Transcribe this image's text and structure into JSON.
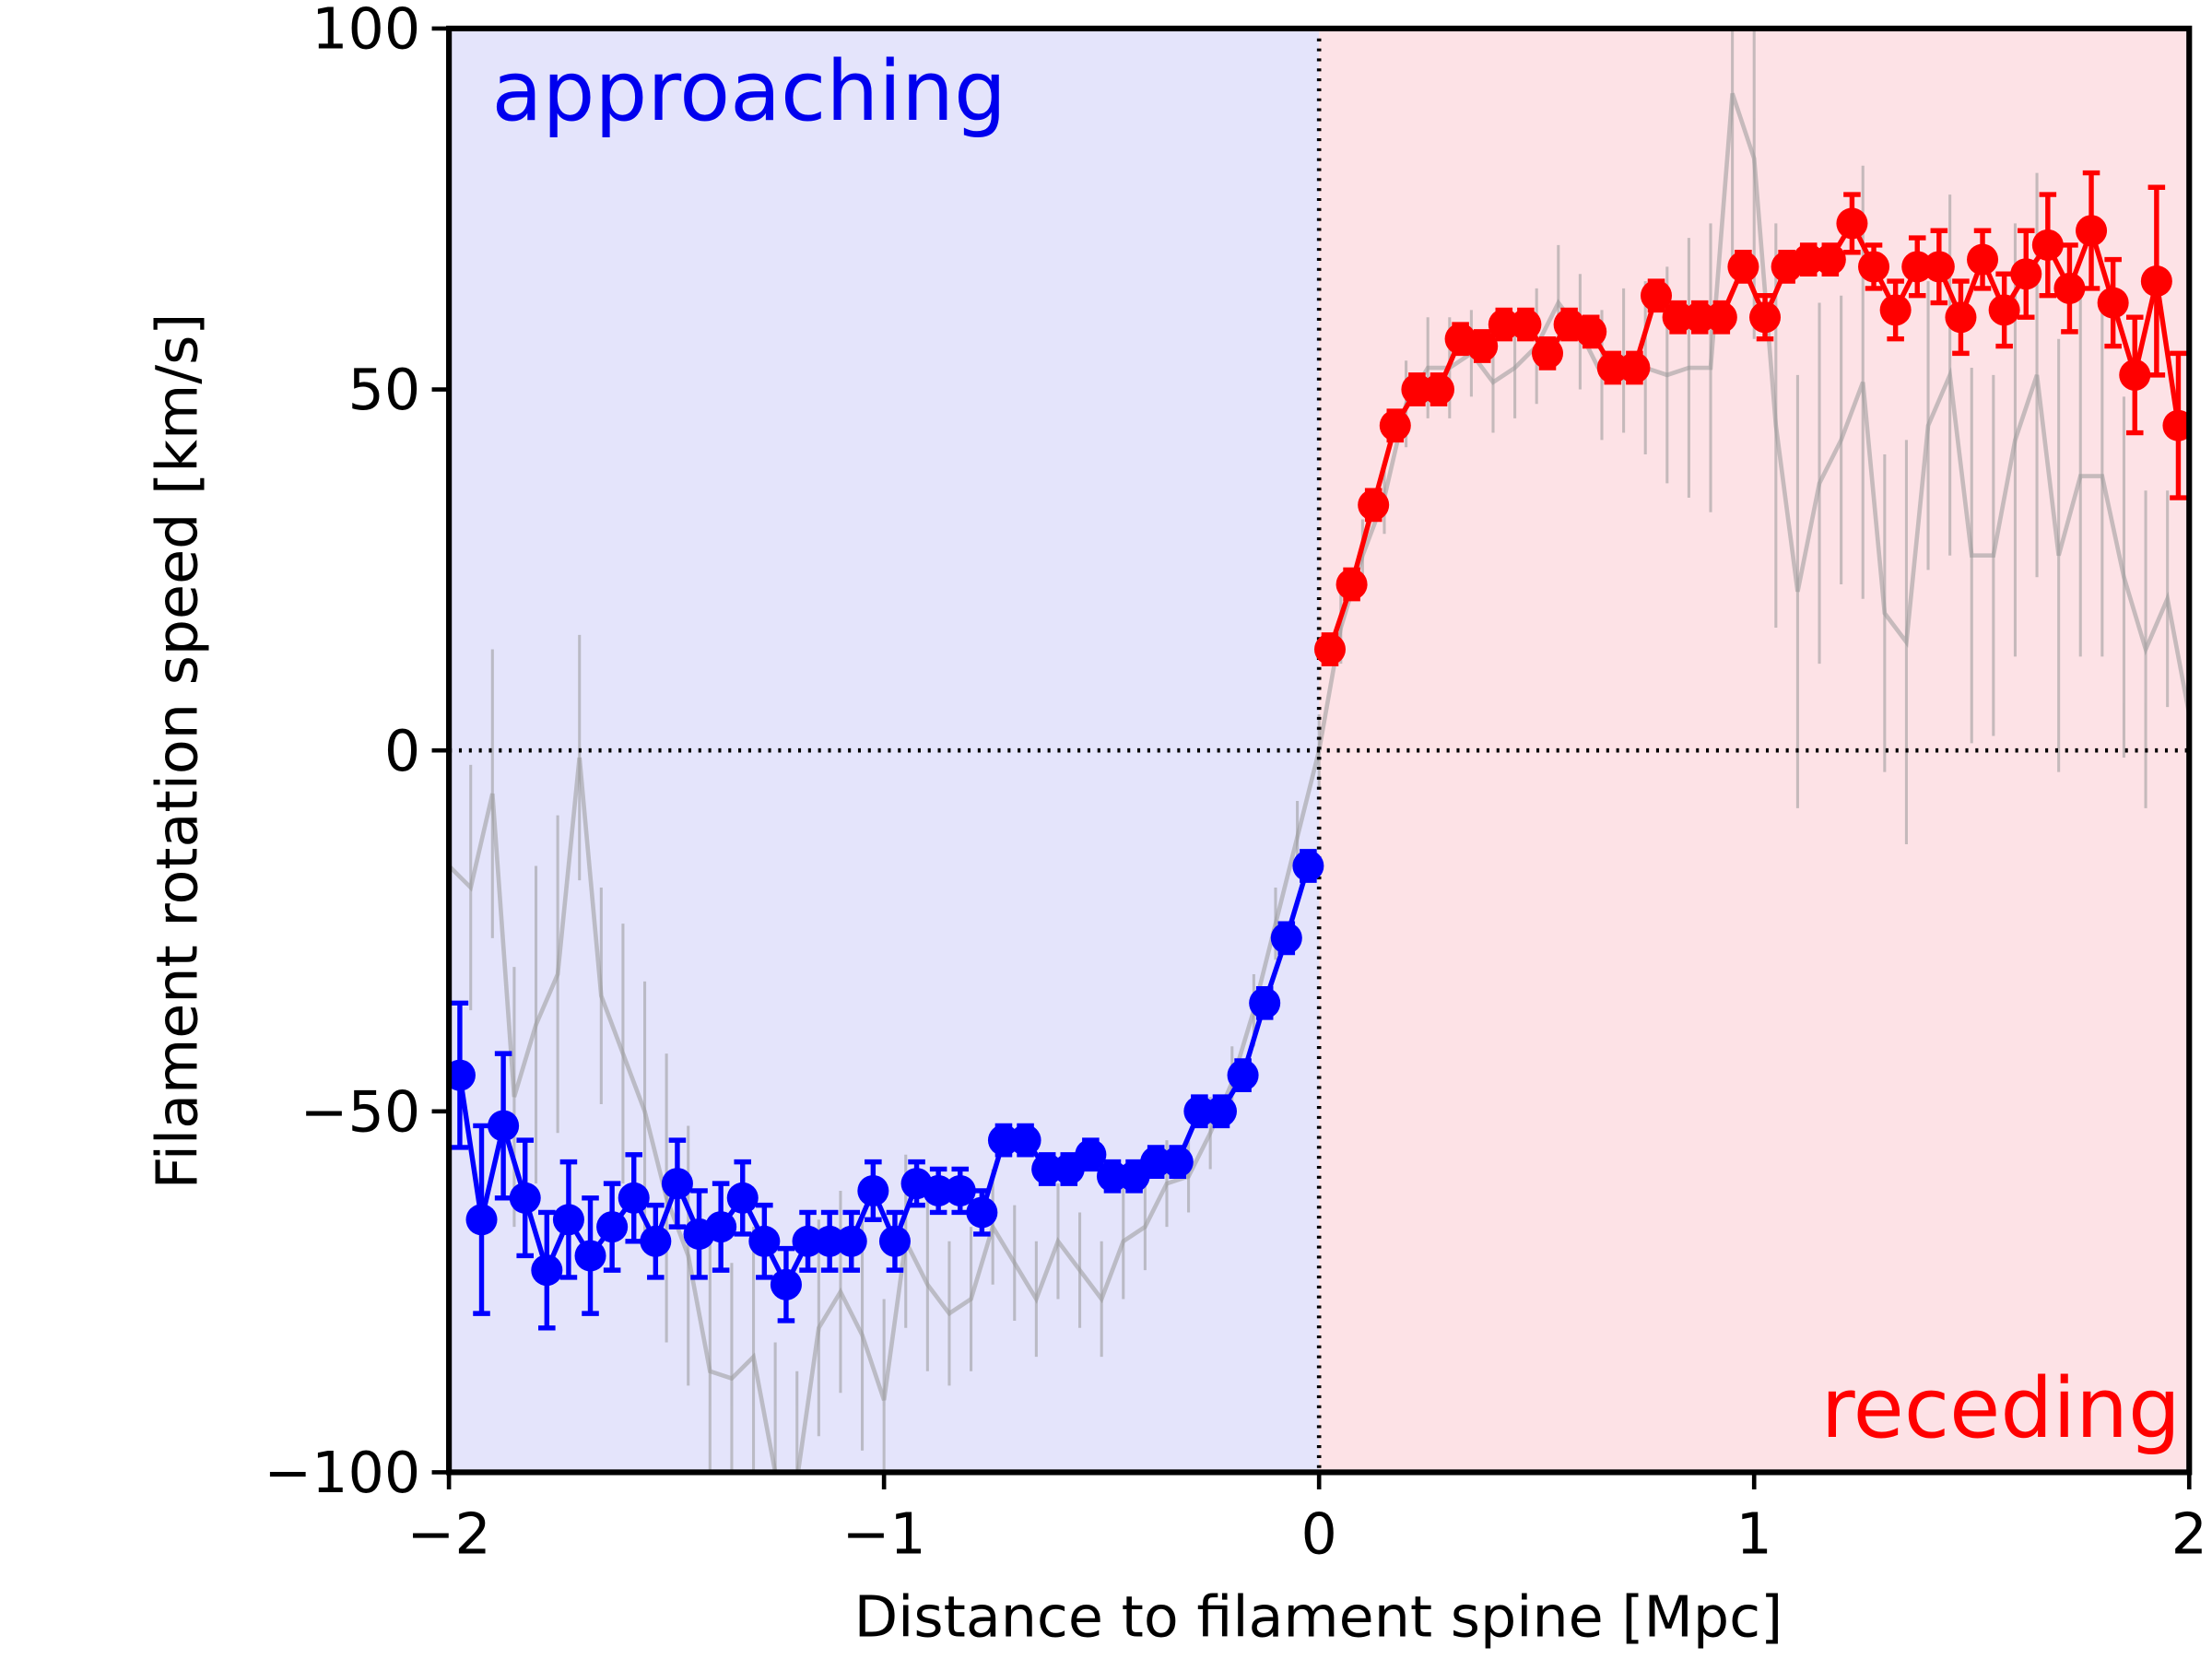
{
  "chart_data": {
    "type": "errorbar",
    "xlabel": "Distance to filament spine [Mpc]",
    "ylabel": "Filament rotation speed [km/s]",
    "xlim": [
      -2,
      2
    ],
    "ylim": [
      -100,
      100
    ],
    "xticks": [
      {
        "value": -2,
        "label": "−2"
      },
      {
        "value": -1,
        "label": "−1"
      },
      0,
      1,
      2
    ],
    "yticks": [
      {
        "value": -100,
        "label": "−100"
      },
      {
        "value": -50,
        "label": "−50"
      },
      0,
      50,
      100
    ],
    "regions": [
      {
        "xlim": [
          -2,
          0
        ],
        "color": "#e4e4fb"
      },
      {
        "xlim": [
          0,
          2
        ],
        "color": "#fde2e6"
      }
    ],
    "vlines": [
      0
    ],
    "hlines": [
      0
    ],
    "annotations": [
      {
        "text": "approaching",
        "color": "#0000ee"
      },
      {
        "text": "receding",
        "color": "#ff0000"
      }
    ],
    "series": [
      {
        "color": "#999999",
        "markers": false,
        "caps": false,
        "x": [
          -2,
          -1.95,
          -1.9,
          -1.85,
          -1.8,
          -1.75,
          -1.7,
          -1.65,
          -1.6,
          -1.55,
          -1.5,
          -1.45,
          -1.4,
          -1.35,
          -1.3,
          -1.25,
          -1.2,
          -1.15,
          -1.1,
          -1.05,
          -1,
          -0.95,
          -0.9,
          -0.85,
          -0.8,
          -0.75,
          -0.7,
          -0.65,
          -0.6,
          -0.55,
          -0.5,
          -0.45,
          -0.4,
          -0.35,
          -0.3,
          -0.25,
          -0.2,
          -0.15,
          -0.1,
          -0.05,
          0,
          0.05,
          0.1,
          0.15,
          0.2,
          0.25,
          0.3,
          0.35,
          0.4,
          0.45,
          0.5,
          0.55,
          0.6,
          0.65,
          0.7,
          0.75,
          0.8,
          0.85,
          0.9,
          0.95,
          1,
          1.05,
          1.1,
          1.15,
          1.2,
          1.25,
          1.3,
          1.35,
          1.4,
          1.45,
          1.5,
          1.55,
          1.6,
          1.65,
          1.7,
          1.75,
          1.8,
          1.85,
          1.9,
          1.95,
          2
        ],
        "values": [
          -16,
          -19,
          -6,
          -48,
          -38,
          -31,
          -1,
          -34,
          -42,
          -50,
          -62,
          -70,
          -86,
          -87,
          -84,
          -100,
          -101,
          -80,
          -75,
          -81,
          -90,
          -68,
          -74,
          -78,
          -76,
          -66,
          -71,
          -76,
          -68,
          -72,
          -76,
          -68,
          -66,
          -60,
          -59,
          -53,
          -46,
          -36,
          -24,
          -12,
          0,
          17,
          27,
          35,
          48,
          53,
          53,
          55,
          51,
          53,
          56,
          62,
          58,
          52,
          54,
          53,
          52,
          53,
          53,
          91,
          82,
          45,
          22,
          37,
          43,
          51,
          19,
          15,
          45,
          52,
          27,
          27,
          43,
          52,
          27,
          38,
          38,
          24,
          14,
          21,
          5
        ],
        "errors": [
          15,
          17,
          20,
          18,
          22,
          22,
          17,
          15,
          18,
          18,
          20,
          18,
          18,
          16,
          18,
          18,
          15,
          15,
          14,
          16,
          14,
          12,
          12,
          10,
          10,
          8,
          8,
          8,
          8,
          8,
          8,
          8,
          6,
          6,
          5,
          5,
          5,
          5,
          5,
          5,
          5,
          5,
          5,
          5,
          6,
          7,
          7,
          6,
          7,
          7,
          8,
          8,
          8,
          9,
          10,
          12,
          15,
          18,
          20,
          25,
          25,
          28,
          30,
          25,
          20,
          30,
          22,
          28,
          20,
          25,
          26,
          25,
          30,
          28,
          30,
          25,
          25,
          25,
          22,
          15,
          14
        ]
      },
      {
        "color": "#0000ff",
        "markers": true,
        "caps": true,
        "x": [
          -1.975,
          -1.925,
          -1.875,
          -1.825,
          -1.775,
          -1.725,
          -1.675,
          -1.625,
          -1.575,
          -1.525,
          -1.475,
          -1.425,
          -1.375,
          -1.325,
          -1.275,
          -1.225,
          -1.175,
          -1.125,
          -1.075,
          -1.025,
          -0.975,
          -0.925,
          -0.875,
          -0.825,
          -0.775,
          -0.725,
          -0.675,
          -0.625,
          -0.575,
          -0.525,
          -0.475,
          -0.425,
          -0.375,
          -0.325,
          -0.275,
          -0.225,
          -0.175,
          -0.125,
          -0.075,
          -0.025
        ],
        "values": [
          -45,
          -65,
          -52,
          -62,
          -72,
          -65,
          -70,
          -66,
          -62,
          -68,
          -60,
          -67,
          -66,
          -62,
          -68,
          -74,
          -68,
          -68,
          -68,
          -61,
          -68,
          -60,
          -61,
          -61,
          -64,
          -54,
          -54,
          -58,
          -58,
          -56,
          -59,
          -59,
          -57,
          -57,
          -50,
          -50,
          -45,
          -35,
          -26,
          -16
        ],
        "errors": [
          10,
          13,
          10,
          8,
          8,
          8,
          8,
          6,
          6,
          5,
          6,
          6,
          6,
          5,
          5,
          5,
          4,
          4,
          4,
          4,
          4,
          3,
          3,
          3,
          3,
          2,
          2,
          2,
          2,
          2,
          2,
          2,
          2,
          2,
          2,
          2,
          2,
          2,
          2,
          2
        ]
      },
      {
        "color": "#ff0000",
        "markers": true,
        "caps": true,
        "x": [
          0.025,
          0.075,
          0.125,
          0.175,
          0.225,
          0.275,
          0.325,
          0.375,
          0.425,
          0.475,
          0.525,
          0.575,
          0.625,
          0.675,
          0.725,
          0.775,
          0.825,
          0.875,
          0.925,
          0.975,
          1.025,
          1.075,
          1.125,
          1.175,
          1.225,
          1.275,
          1.325,
          1.375,
          1.425,
          1.475,
          1.525,
          1.575,
          1.625,
          1.675,
          1.725,
          1.775,
          1.825,
          1.875,
          1.925,
          1.975
        ],
        "values": [
          14,
          23,
          34,
          45,
          50,
          50,
          57,
          56,
          59,
          59,
          55,
          59,
          58,
          53,
          53,
          63,
          60,
          60,
          60,
          67,
          60,
          67,
          68,
          68,
          73,
          67,
          61,
          67,
          67,
          60,
          68,
          61,
          66,
          70,
          64,
          72,
          62,
          52,
          65,
          45
        ],
        "errors": [
          2,
          2,
          2,
          2,
          2,
          2,
          2,
          2,
          2,
          2,
          2,
          2,
          2,
          2,
          2,
          2,
          2,
          2,
          2,
          2,
          3,
          2,
          2,
          2,
          4,
          3,
          4,
          4,
          5,
          5,
          4,
          5,
          6,
          7,
          6,
          8,
          6,
          8,
          13,
          10
        ]
      }
    ]
  }
}
